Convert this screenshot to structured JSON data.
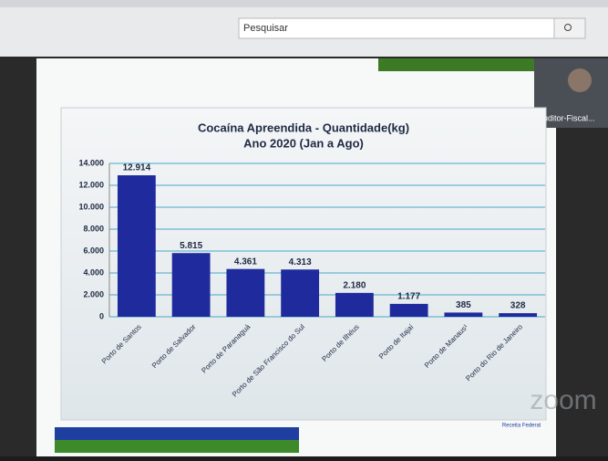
{
  "browser": {
    "search_placeholder": "Pesquisar"
  },
  "video": {
    "participant": "Auditor-Fiscal..."
  },
  "watermark": "zoom",
  "footer_logo": "Receita Federal",
  "chart_data": {
    "type": "bar",
    "title": "Cocaína Apreendida - Quantidade(kg)",
    "subtitle": "Ano 2020 (Jan a Ago)",
    "categories": [
      "Porto de Santos",
      "Porto de Salvador",
      "Porto de Paranaguá",
      "Porto de São Francisco do Sul",
      "Porto de Ilhéus",
      "Porto de Itajaí",
      "Porto de Manaus¹",
      "Porto do Rio de Janeiro"
    ],
    "values": [
      12914,
      5815,
      4361,
      4313,
      2180,
      1177,
      385,
      328
    ],
    "value_labels": [
      "12.914",
      "5.815",
      "4.361",
      "4.313",
      "2.180",
      "1.177",
      "385",
      "328"
    ],
    "color": "#1f2b9c",
    "ylim": [
      0,
      14000
    ],
    "yticks": [
      0,
      {
        "value": 2000,
        "label": "2.000"
      },
      {
        "value": 4000,
        "label": "4.000"
      },
      {
        "value": 6000,
        "label": "6.000"
      },
      {
        "value": 8000,
        "label": "8.000"
      },
      {
        "value": 10000,
        "label": "10.000"
      },
      {
        "value": 12000,
        "label": "12.000"
      },
      {
        "value": 14000,
        "label": "14.000"
      }
    ],
    "grid": true
  }
}
